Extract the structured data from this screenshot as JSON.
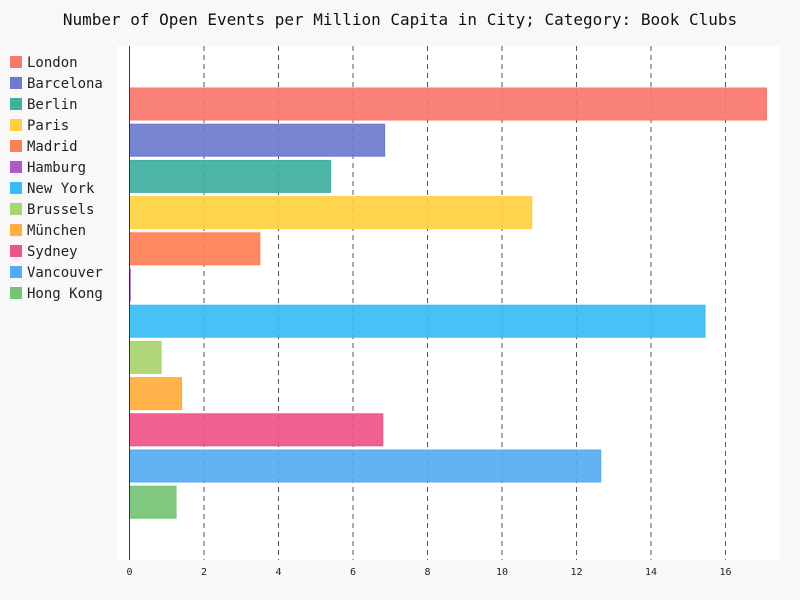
{
  "chart_data": {
    "type": "bar",
    "orientation": "horizontal",
    "title": "Number of Open Events per Million Capita in City; Category: Book Clubs",
    "xlabel": "",
    "ylabel": "",
    "xlim": [
      0,
      17.5
    ],
    "x_ticks": [
      0,
      2,
      4,
      6,
      8,
      10,
      12,
      14,
      16
    ],
    "grid": "vertical-dashed",
    "legend_position": "left",
    "categories": [
      "London",
      "Barcelona",
      "Berlin",
      "Paris",
      "Madrid",
      "Hamburg",
      "New York",
      "Brussels",
      "München",
      "Sydney",
      "Vancouver",
      "Hong Kong"
    ],
    "values": [
      17.1,
      6.85,
      5.4,
      10.8,
      3.5,
      0.02,
      15.45,
      0.85,
      1.4,
      6.8,
      12.65,
      1.25
    ],
    "colors": [
      "#f8766d",
      "#6c7bcc",
      "#3fb0a0",
      "#ffd03f",
      "#ff7f55",
      "#b15ac7",
      "#37bdf5",
      "#a9d46f",
      "#ffad3b",
      "#ef5387",
      "#56abf2",
      "#76c376"
    ]
  }
}
